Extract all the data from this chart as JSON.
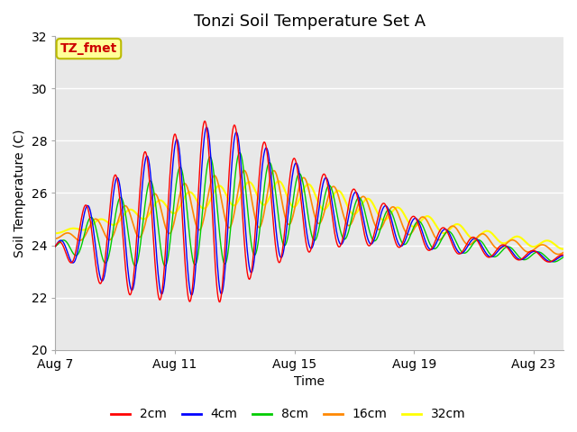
{
  "title": "Tonzi Soil Temperature Set A",
  "xlabel": "Time",
  "ylabel": "Soil Temperature (C)",
  "ylim": [
    20,
    32
  ],
  "xlim_days": [
    0,
    17
  ],
  "xtick_positions": [
    0,
    4,
    8,
    12,
    16
  ],
  "xtick_labels": [
    "Aug 7",
    "Aug 11",
    "Aug 15",
    "Aug 19",
    "Aug 23"
  ],
  "ytick_positions": [
    20,
    22,
    24,
    26,
    28,
    30,
    32
  ],
  "colors": {
    "2cm": "#ff0000",
    "4cm": "#0000ff",
    "8cm": "#00cc00",
    "16cm": "#ff8800",
    "32cm": "#ffff00"
  },
  "legend_label": "TZ_fmet",
  "background_color": "#e8e8e8",
  "outer_background": "#ffffff",
  "annotation_box_color": "#ffff99",
  "annotation_box_edge": "#bbbb00",
  "title_fontsize": 13,
  "axis_label_fontsize": 10,
  "tick_fontsize": 10,
  "legend_fontsize": 10
}
